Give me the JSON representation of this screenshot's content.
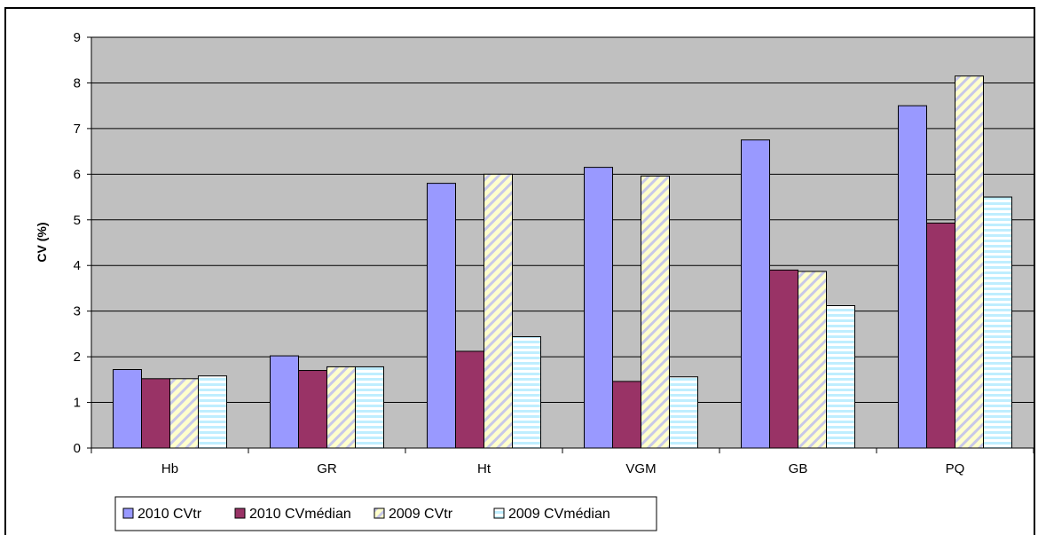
{
  "chart_data": {
    "type": "bar",
    "title": "",
    "xlabel": "",
    "ylabel": "CV (%)",
    "ylim": [
      0,
      9
    ],
    "yticks": [
      0,
      1,
      2,
      3,
      4,
      5,
      6,
      7,
      8,
      9
    ],
    "grid": true,
    "legend_position": "bottom-left",
    "categories": [
      "Hb",
      "GR",
      "Ht",
      "VGM",
      "GB",
      "PQ"
    ],
    "series": [
      {
        "name": "2010 CVtr",
        "values": [
          1.72,
          2.02,
          5.8,
          6.15,
          6.75,
          7.5
        ],
        "color": "#9999ff",
        "pattern": "solid"
      },
      {
        "name": "2010 CVmédian",
        "values": [
          1.52,
          1.7,
          2.12,
          1.46,
          3.9,
          4.93
        ],
        "color": "#993366",
        "pattern": "solid"
      },
      {
        "name": "2009 CVtr",
        "values": [
          1.52,
          1.78,
          6.0,
          5.96,
          3.87,
          8.15
        ],
        "color": "#ffffcc",
        "pattern": "diagonal-stripes"
      },
      {
        "name": "2009 CVmédian",
        "values": [
          1.58,
          1.78,
          2.44,
          1.56,
          3.12,
          5.5
        ],
        "color": "#ccffff",
        "pattern": "horizontal-stripes"
      }
    ]
  }
}
